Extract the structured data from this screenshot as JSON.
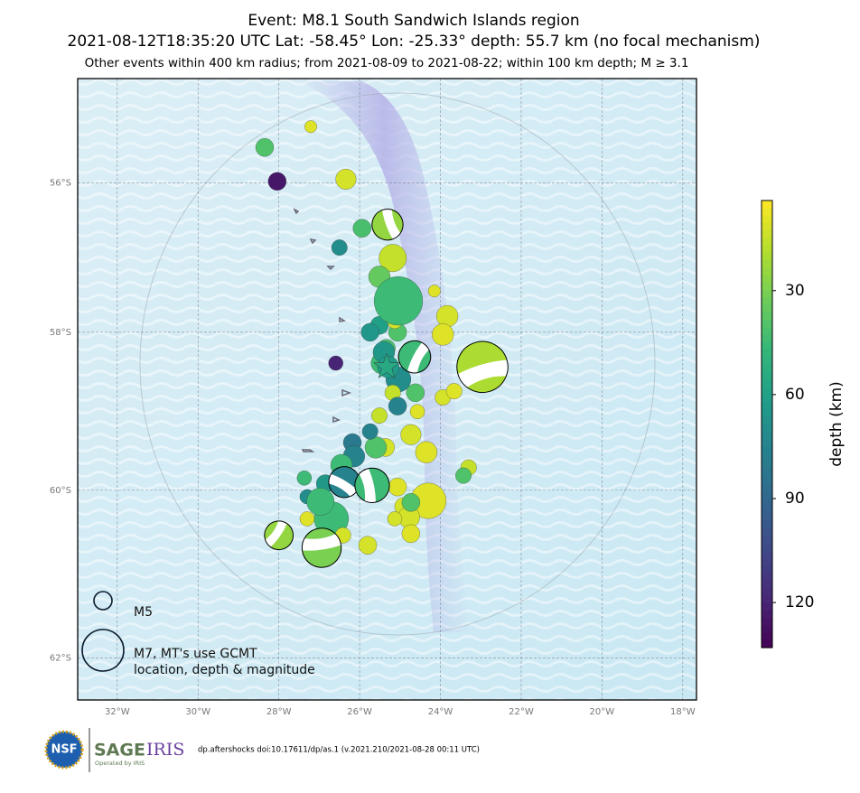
{
  "chart_data": {
    "type": "scatter_map",
    "title": "Event: M8.1 South Sandwich Islands region",
    "subtitle": "2021-08-12T18:35:20 UTC Lat: -58.45° Lon: -25.33° depth: 55.7 km (no focal mechanism)",
    "caption": "Other events within 400 km radius; from 2021-08-09 to 2021-08-22; within 100 km depth; M ≥ 3.1",
    "xlim": [
      -32.98,
      -17.66
    ],
    "ylim": [
      -62.48,
      -54.54
    ],
    "xticks": [
      {
        "value": -32,
        "label": "32°W"
      },
      {
        "value": -30,
        "label": "30°W"
      },
      {
        "value": -28,
        "label": "28°W"
      },
      {
        "value": -26,
        "label": "26°W"
      },
      {
        "value": -24,
        "label": "24°W"
      },
      {
        "value": -22,
        "label": "22°W"
      },
      {
        "value": -20,
        "label": "20°W"
      },
      {
        "value": -18,
        "label": "18°W"
      }
    ],
    "yticks": [
      {
        "value": -56,
        "label": "56°S"
      },
      {
        "value": -58,
        "label": "58°S"
      },
      {
        "value": -60,
        "label": "60°S"
      },
      {
        "value": -62,
        "label": "62°S"
      }
    ],
    "grid": true,
    "colormap": "viridis_r",
    "colorbar": {
      "label": "depth (km)",
      "lim": [
        4,
        133
      ],
      "ticks": [
        30,
        60,
        90,
        120
      ]
    },
    "mainshock": {
      "lon": -25.33,
      "lat": -58.45,
      "depth": 55.7
    },
    "events": {
      "lon": [
        -27.21,
        -28.35,
        -28.04,
        -26.34,
        -26.5,
        -25.94,
        -25.18,
        -25.51,
        -24.15,
        -23.83,
        -23.94,
        -25.51,
        -25.74,
        -26.59,
        -25.04,
        -25.18,
        -24.62,
        -23.94,
        -23.66,
        -25.51,
        -25.06,
        -24.57,
        -25.36,
        -24.73,
        -25.6,
        -26.18,
        -25.74,
        -24.35,
        -23.3,
        -23.43,
        -27.37,
        -27.3,
        -26.7,
        -24.3,
        -24.91,
        -24.78,
        -25.06,
        -24.73,
        -25.8,
        -25.13,
        -24.73,
        -26.41,
        -26.14,
        -26.45,
        -26.85,
        -26.97,
        -27.3,
        -25.45,
        -25.34,
        -25.06,
        -25.13,
        -25.4,
        -25.29,
        -25.04
      ],
      "lat": [
        -55.22,
        -55.51,
        -55.98,
        -55.95,
        -56.88,
        -56.62,
        -57.02,
        -57.27,
        -57.46,
        -57.79,
        -58.03,
        -57.91,
        -58.0,
        -58.4,
        -58.61,
        -58.78,
        -58.78,
        -58.84,
        -58.76,
        -59.07,
        -58.95,
        -59.02,
        -59.47,
        -59.31,
        -59.47,
        -59.41,
        -59.27,
        -59.53,
        -59.72,
        -59.82,
        -59.85,
        -60.08,
        -60.35,
        -60.13,
        -60.2,
        -60.33,
        -59.96,
        -60.53,
        -60.67,
        -60.35,
        -60.15,
        -60.55,
        -59.58,
        -59.69,
        -59.92,
        -60.14,
        -60.35,
        -58.4,
        -58.21,
        -58.0,
        -57.86,
        -58.26,
        -58.45,
        -57.59
      ],
      "depth": [
        10,
        40,
        125,
        12,
        70,
        42,
        15,
        35,
        10,
        12,
        10,
        60,
        65,
        120,
        70,
        15,
        40,
        12,
        10,
        15,
        75,
        10,
        12,
        12,
        40,
        80,
        75,
        10,
        15,
        40,
        45,
        70,
        45,
        10,
        12,
        12,
        10,
        10,
        12,
        12,
        40,
        12,
        75,
        45,
        65,
        45,
        10,
        45,
        42,
        40,
        12,
        65,
        62,
        45
      ],
      "magnitude": [
        4.5,
        5.0,
        5.0,
        5.2,
        4.8,
        5.0,
        5.8,
        5.3,
        4.5,
        5.3,
        5.3,
        5.0,
        5.0,
        4.7,
        5.6,
        4.8,
        5.0,
        4.8,
        4.8,
        4.8,
        5.0,
        4.7,
        5.0,
        5.2,
        5.3,
        5.0,
        4.8,
        5.3,
        4.8,
        4.8,
        4.7,
        4.7,
        6.4,
        6.5,
        5.0,
        5.3,
        5.0,
        5.0,
        5.0,
        4.7,
        5.0,
        4.8,
        5.3,
        5.3,
        5.0,
        5.8,
        4.7,
        5.3,
        5.0,
        5.0,
        4.7,
        5.3,
        5.3,
        7.6
      ]
    },
    "moment_tensors": {
      "lon": [
        -25.31,
        -24.64,
        -22.96,
        -26.38,
        -25.69,
        -28.0,
        -26.94
      ],
      "lat": [
        -56.57,
        -58.32,
        -58.45,
        -59.9,
        -59.94,
        -60.55,
        -60.7
      ],
      "depth": [
        25,
        45,
        20,
        75,
        45,
        25,
        30
      ],
      "magnitude": [
        6.1,
        6.2,
        7.8,
        6.1,
        6.4,
        5.9,
        6.8
      ]
    },
    "legend": [
      {
        "magnitude": 5,
        "lines": [
          "M5"
        ]
      },
      {
        "magnitude": 7,
        "lines": [
          "M7, MT's use GCMT",
          "location, depth & magnitude"
        ]
      }
    ],
    "footer": {
      "nsf": "NSF",
      "sage": "SAGE",
      "iris": "IRIS",
      "operated": "Operated by IRIS",
      "doi": "dp.aftershocks doi:10.17611/dp/as.1 (v.2021.210/2021-08-28 00:11 UTC)"
    }
  }
}
